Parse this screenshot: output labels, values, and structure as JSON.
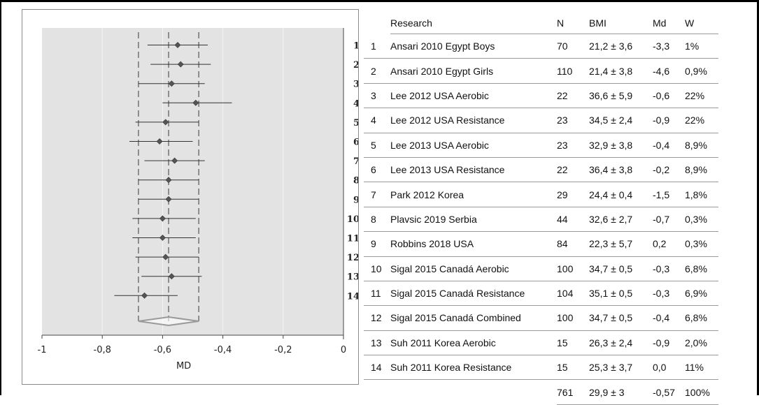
{
  "chart_data": {
    "type": "forest",
    "xlabel": "MD",
    "xlim": [
      -1,
      0
    ],
    "x_ticks": [
      "-1",
      "-0,8",
      "-0,6",
      "-0,4",
      "-0,2",
      "0"
    ],
    "grid": "vertical",
    "reference_lines": {
      "pooled_estimate": -0.58,
      "lower_ci": -0.68,
      "upper_ci": -0.48
    },
    "studies": [
      {
        "id": "1",
        "estimate": -0.55,
        "ci": [
          -0.65,
          -0.45
        ]
      },
      {
        "id": "2",
        "estimate": -0.54,
        "ci": [
          -0.64,
          -0.44
        ]
      },
      {
        "id": "3",
        "estimate": -0.57,
        "ci": [
          -0.68,
          -0.46
        ]
      },
      {
        "id": "4",
        "estimate": -0.49,
        "ci": [
          -0.6,
          -0.37
        ]
      },
      {
        "id": "5",
        "estimate": -0.59,
        "ci": [
          -0.69,
          -0.48
        ]
      },
      {
        "id": "6",
        "estimate": -0.61,
        "ci": [
          -0.71,
          -0.5
        ]
      },
      {
        "id": "7",
        "estimate": -0.56,
        "ci": [
          -0.66,
          -0.46
        ]
      },
      {
        "id": "8",
        "estimate": -0.58,
        "ci": [
          -0.68,
          -0.48
        ]
      },
      {
        "id": "9",
        "estimate": -0.58,
        "ci": [
          -0.68,
          -0.48
        ]
      },
      {
        "id": "10",
        "estimate": -0.6,
        "ci": [
          -0.7,
          -0.49
        ]
      },
      {
        "id": "11",
        "estimate": -0.6,
        "ci": [
          -0.7,
          -0.49
        ]
      },
      {
        "id": "12",
        "estimate": -0.59,
        "ci": [
          -0.69,
          -0.48
        ]
      },
      {
        "id": "13",
        "estimate": -0.57,
        "ci": [
          -0.67,
          -0.47
        ]
      },
      {
        "id": "14",
        "estimate": -0.66,
        "ci": [
          -0.76,
          -0.55
        ]
      }
    ],
    "summary": {
      "estimate": -0.58,
      "ci": [
        -0.68,
        -0.48
      ]
    }
  },
  "table": {
    "headers": {
      "name": "Research",
      "n": "N",
      "bmi": "BMI",
      "md": "Md",
      "w": "W"
    },
    "rows": [
      {
        "id": "1",
        "name": "Ansari 2010 Egypt Boys",
        "n": "70",
        "bmi": "21,2 ± 3,6",
        "md": "-3,3",
        "w": "1%"
      },
      {
        "id": "2",
        "name": "Ansari 2010 Egypt Girls",
        "n": "110",
        "bmi": "21,4 ± 3,8",
        "md": "-4,6",
        "w": "0,9%"
      },
      {
        "id": "3",
        "name": "Lee 2012 USA Aerobic",
        "n": "22",
        "bmi": "36,6 ± 5,9",
        "md": "-0,6",
        "w": "22%"
      },
      {
        "id": "4",
        "name": "Lee 2012 USA Resistance",
        "n": "23",
        "bmi": "34,5 ± 2,4",
        "md": "-0,9",
        "w": "22%"
      },
      {
        "id": "5",
        "name": "Lee 2013 USA Aerobic",
        "n": "23",
        "bmi": "32,9 ± 3,8",
        "md": "-0,4",
        "w": "8,9%"
      },
      {
        "id": "6",
        "name": "Lee 2013 USA Resistance",
        "n": "22",
        "bmi": "36,4 ± 3,8",
        "md": "-0,2",
        "w": "8,9%"
      },
      {
        "id": "7",
        "name": "Park 2012 Korea",
        "n": "29",
        "bmi": "24,4 ± 0,4",
        "md": "-1,5",
        "w": "1,8%"
      },
      {
        "id": "8",
        "name": "Plavsic 2019 Serbia",
        "n": "44",
        "bmi": "32,6 ± 2,7",
        "md": "-0,7",
        "w": "0,3%"
      },
      {
        "id": "9",
        "name": "Robbins 2018 USA",
        "n": "84",
        "bmi": "22,3 ± 5,7",
        "md": "0,2",
        "w": "0,3%"
      },
      {
        "id": "10",
        "name": "Sigal 2015 Canadá Aerobic",
        "n": "100",
        "bmi": "34,7 ± 0,5",
        "md": "-0,3",
        "w": "6,8%"
      },
      {
        "id": "11",
        "name": "Sigal 2015 Canadá Resistance",
        "n": "104",
        "bmi": "35,1 ± 0,5",
        "md": "-0,3",
        "w": "6,9%"
      },
      {
        "id": "12",
        "name": "Sigal 2015 Canadá Combined",
        "n": "100",
        "bmi": "34,7 ± 0,5",
        "md": "-0,4",
        "w": "6,8%"
      },
      {
        "id": "13",
        "name": "Suh 2011 Korea Aerobic",
        "n": "15",
        "bmi": "26,3 ± 2,4",
        "md": "-0,9",
        "w": "2,0%"
      },
      {
        "id": "14",
        "name": "Suh 2011 Korea Resistance",
        "n": "15",
        "bmi": "25,3 ± 3,7",
        "md": "0,0",
        "w": "11%"
      }
    ],
    "total": {
      "n": "761",
      "bmi": "29,9 ± 3",
      "md": "-0,57",
      "w": "100%"
    }
  },
  "colors": {
    "plot_background": "#e3e3e3",
    "marker": "#555555",
    "ci_line": "#333333",
    "diamond": "#9a9a9a",
    "grid": "#f4f4f4"
  }
}
